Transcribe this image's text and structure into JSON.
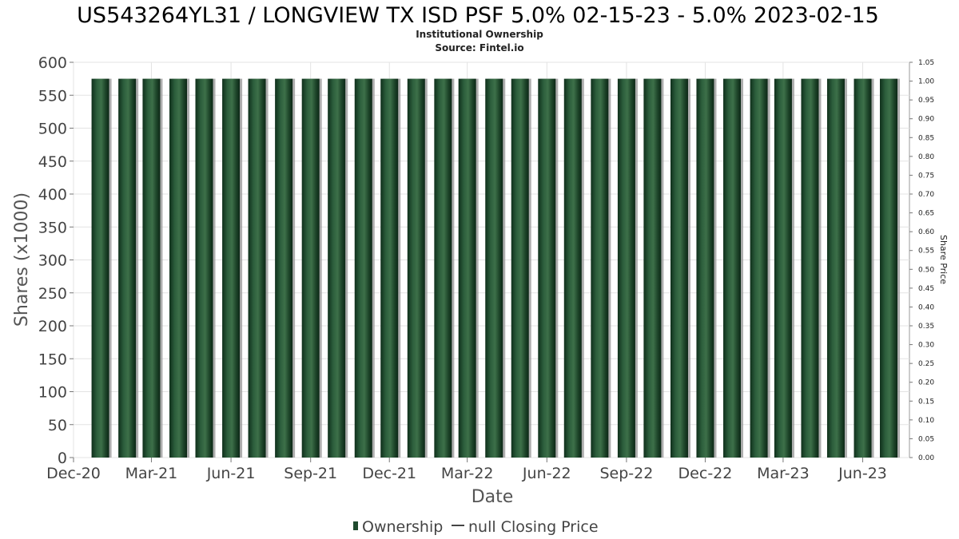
{
  "chart_data": {
    "type": "bar",
    "title": "US543264YL31 / LONGVIEW TX ISD PSF 5.0% 02-15-23 - 5.0% 2023-02-15",
    "subtitle_lines": [
      "Institutional Ownership",
      "Source: Fintel.io"
    ],
    "xlabel": "Date",
    "ylabel": "Shares (x1000)",
    "y2label": "Share Price",
    "ylim": [
      0,
      600
    ],
    "y2lim": [
      0,
      1.05
    ],
    "yticks": [
      "0",
      "50",
      "100",
      "150",
      "200",
      "250",
      "300",
      "350",
      "400",
      "450",
      "500",
      "550",
      "600"
    ],
    "y2ticks": [
      "0.00",
      "0.05",
      "0.10",
      "0.15",
      "0.20",
      "0.25",
      "0.30",
      "0.35",
      "0.40",
      "0.45",
      "0.50",
      "0.55",
      "0.60",
      "0.65",
      "0.70",
      "0.75",
      "0.80",
      "0.85",
      "0.90",
      "0.95",
      "1.00",
      "1.05"
    ],
    "xtick_labels": [
      "Dec-20",
      "Mar-21",
      "Jun-21",
      "Sep-21",
      "Dec-21",
      "Mar-22",
      "Jun-22",
      "Sep-22",
      "Dec-22",
      "Mar-23",
      "Jun-23"
    ],
    "xlim": [
      "2020-12-01",
      "2023-07-25"
    ],
    "xtick_dates": [
      "2020-12-01",
      "2021-03-01",
      "2021-06-01",
      "2021-09-01",
      "2021-12-01",
      "2022-03-01",
      "2022-06-01",
      "2022-09-01",
      "2022-12-01",
      "2023-03-01",
      "2023-06-01"
    ],
    "series": [
      {
        "name": "Ownership",
        "x": [
          "2021-01-01",
          "2021-02-01",
          "2021-03-01",
          "2021-04-01",
          "2021-05-01",
          "2021-06-01",
          "2021-07-01",
          "2021-08-01",
          "2021-09-01",
          "2021-10-01",
          "2021-11-01",
          "2021-12-01",
          "2022-01-01",
          "2022-02-01",
          "2022-03-01",
          "2022-04-01",
          "2022-05-01",
          "2022-06-01",
          "2022-07-01",
          "2022-08-01",
          "2022-09-01",
          "2022-10-01",
          "2022-11-01",
          "2022-12-01",
          "2023-01-01",
          "2023-02-01",
          "2023-03-01",
          "2023-04-01",
          "2023-05-01",
          "2023-06-01",
          "2023-07-01"
        ],
        "values": [
          575,
          575,
          575,
          575,
          575,
          575,
          575,
          575,
          575,
          575,
          575,
          575,
          575,
          575,
          575,
          575,
          575,
          575,
          575,
          575,
          575,
          575,
          575,
          575,
          575,
          575,
          575,
          575,
          575,
          575,
          575
        ],
        "color": "#1f4a2e"
      },
      {
        "name": "null Closing Price",
        "values": []
      }
    ],
    "grid": true,
    "legend_position": "bottom"
  }
}
